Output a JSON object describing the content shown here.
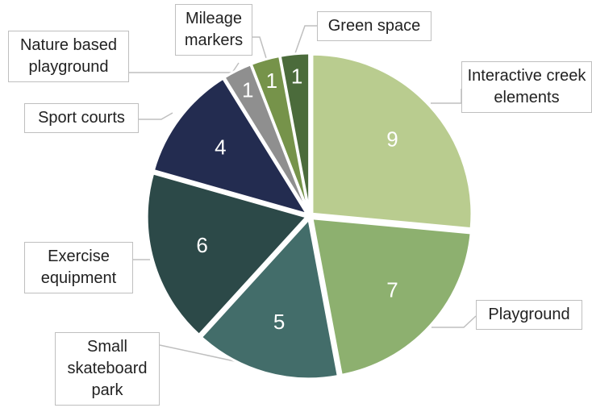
{
  "chart_data": {
    "type": "pie",
    "categories": [
      "Interactive creek elements",
      "Playground",
      "Small skateboard park",
      "Exercise equipment",
      "Sport courts",
      "Nature based playground",
      "Mileage markers",
      "Green space"
    ],
    "values": [
      9,
      7,
      5,
      6,
      4,
      1,
      1,
      1
    ],
    "colors": [
      "#b9cc8f",
      "#8db06f",
      "#436d6a",
      "#2c4948",
      "#232c50",
      "#8f8f8f",
      "#76934a",
      "#4b6b3b"
    ]
  }
}
